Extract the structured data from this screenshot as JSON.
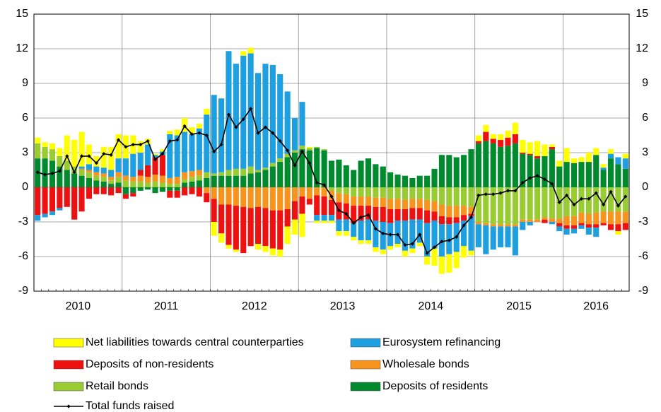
{
  "chart_data": {
    "type": "bar",
    "stacked": true,
    "grid": true,
    "categories": [
      "2010",
      null,
      null,
      null,
      null,
      null,
      null,
      null,
      null,
      null,
      null,
      null,
      "2011",
      null,
      null,
      null,
      null,
      null,
      null,
      null,
      null,
      null,
      null,
      null,
      "2012",
      null,
      null,
      null,
      null,
      null,
      null,
      null,
      null,
      null,
      null,
      null,
      "2013",
      null,
      null,
      null,
      null,
      null,
      null,
      null,
      null,
      null,
      null,
      null,
      "2014",
      null,
      null,
      null,
      null,
      null,
      null,
      null,
      null,
      null,
      null,
      null,
      "2015",
      null,
      null,
      null,
      null,
      null,
      null,
      null,
      null,
      null,
      null,
      null,
      "2016",
      null,
      null,
      null,
      null,
      null,
      null,
      null,
      null
    ],
    "ylim": [
      -9,
      15
    ],
    "yticks": [
      -9,
      -6,
      -3,
      0,
      3,
      6,
      9,
      12,
      15
    ],
    "series": [
      {
        "name": "Net liabilities towards central counterparties",
        "color": "#ffff00",
        "values": [
          0.5,
          0.4,
          0.5,
          0.7,
          2.2,
          2.3,
          3.0,
          1.7,
          0.9,
          1.8,
          2.0,
          2.1,
          2.0,
          1.6,
          1.0,
          0.5,
          0.1,
          0.2,
          0.3,
          0.5,
          1.2,
          0.6,
          0.4,
          0.5,
          -1.2,
          -0.8,
          -0.3,
          -0.2,
          0.4,
          0.5,
          -0.5,
          -0.5,
          -0.6,
          -0.6,
          -1.5,
          -1.3,
          -2.0,
          0.1,
          -0.2,
          -0.2,
          -0.2,
          -0.4,
          -0.4,
          -0.3,
          -0.3,
          -0.3,
          -0.4,
          -0.4,
          -0.3,
          -0.3,
          -0.5,
          -0.4,
          -0.3,
          -0.7,
          -1.5,
          -1.5,
          -1.6,
          -1.4,
          -1.0,
          -0.4,
          0.5,
          0.6,
          0.4,
          0.5,
          0.6,
          1.0,
          1.1,
          1.0,
          1.3,
          1.0,
          0.2,
          0.5,
          1.2,
          0.4,
          0.4,
          0.8,
          0.6,
          0.3,
          0.4,
          -0.3,
          0.4
        ]
      },
      {
        "name": "Eurosystem refinancing",
        "color": "#1e9fe0",
        "values": [
          -0.5,
          -0.3,
          -0.3,
          -0.2,
          0,
          0,
          0.2,
          0.5,
          0.5,
          0.5,
          0.6,
          1.2,
          1.5,
          2.0,
          1.5,
          1.8,
          0.2,
          0.3,
          3.8,
          3.6,
          3.5,
          3.2,
          3.6,
          5.0,
          6.8,
          6.4,
          10.3,
          9.1,
          9.8,
          9.8,
          8.4,
          9.0,
          8.5,
          7.3,
          5.4,
          2.8,
          3.8,
          0,
          -0.5,
          -0.5,
          -0.5,
          -1.0,
          -1.0,
          -1.2,
          -1.7,
          -1.8,
          -2.3,
          -2.4,
          -2.0,
          -2.0,
          -2.6,
          -2.5,
          -2.0,
          -2.9,
          -2.4,
          -2.8,
          -2.6,
          -2.5,
          -2.2,
          -3.0,
          -2.0,
          -2.5,
          -2.0,
          -1.8,
          -1.8,
          -2.5,
          -0.7,
          -0.3,
          0,
          0,
          -0.2,
          -0.4,
          -0.5,
          -0.4,
          -0.3,
          -0.6,
          -0.8,
          0.2,
          0.4,
          0.6,
          0.9
        ]
      },
      {
        "name": "Deposits of non-residents",
        "color": "#ee1111",
        "values": [
          -2.4,
          -2.3,
          -2.1,
          -1.8,
          -1.7,
          -2.8,
          -2.1,
          -1.0,
          -0.6,
          -0.6,
          -0.7,
          -0.5,
          -0.4,
          -0.3,
          0.5,
          1.0,
          1.5,
          1.8,
          -0.6,
          -0.6,
          -0.7,
          -0.6,
          -0.8,
          -0.8,
          -2.0,
          -2.5,
          -3.5,
          -3.8,
          -4.0,
          -3.3,
          -3.2,
          -3.3,
          -3.3,
          -3.4,
          -1.5,
          -1.6,
          -1.5,
          -0.5,
          -1.7,
          -1.6,
          -1.3,
          -1.5,
          -1.4,
          -1.5,
          -1.3,
          -1.2,
          -1.2,
          -1.3,
          -1.2,
          -1.0,
          -1.0,
          -1.0,
          -1.0,
          -1.1,
          -0.8,
          -0.7,
          -0.6,
          -0.5,
          -0.5,
          -0.2,
          0.2,
          0.8,
          0.4,
          0.6,
          0.7,
          0.8,
          0.1,
          0.1,
          0.2,
          -0.3,
          0.2,
          -0.3,
          -0.3,
          -0.3,
          -0.2,
          -0.3,
          -0.3,
          -0.2,
          -0.5,
          -0.6,
          -0.6
        ]
      },
      {
        "name": "Wholesale bonds",
        "color": "#f7941d",
        "values": [
          0,
          0,
          0,
          0,
          0,
          0,
          0.1,
          0.2,
          0.3,
          0.3,
          0.3,
          0.4,
          0.4,
          0.4,
          0.5,
          0.5,
          0.6,
          0.6,
          0.5,
          0.6,
          0.6,
          0.5,
          0.5,
          -0.5,
          -1.0,
          -1.5,
          -1.5,
          -1.6,
          -1.7,
          -1.8,
          -1.7,
          -1.8,
          -2.0,
          -2.0,
          -1.9,
          -1.2,
          -0.8,
          -1.0,
          -0.7,
          -0.8,
          -0.8,
          -0.8,
          -0.8,
          -0.8,
          -0.8,
          -0.8,
          -0.8,
          -0.8,
          -0.9,
          -0.9,
          -0.8,
          -0.8,
          -0.8,
          -0.9,
          -0.9,
          -1.0,
          -1.0,
          -1.0,
          -0.8,
          -0.6,
          -0.2,
          -0.2,
          -0.2,
          -0.2,
          -0.2,
          -0.2,
          -0.2,
          -0.2,
          -0.2,
          -0.2,
          -0.3,
          -0.4,
          -0.8,
          -0.8,
          -0.9,
          -0.9,
          -1.0,
          -1.0,
          -1.1,
          -1.1,
          -1.0
        ]
      },
      {
        "name": "Retail bonds",
        "color": "#99cc33",
        "values": [
          1.3,
          1.0,
          1.0,
          0.9,
          0.8,
          0.6,
          0.5,
          0.5,
          0.4,
          0.4,
          0.3,
          0.5,
          0.6,
          0.5,
          0.5,
          0.4,
          0.5,
          0.4,
          0.3,
          0.3,
          0.3,
          0.4,
          0.4,
          0.5,
          0.2,
          0.3,
          0.5,
          0.6,
          0.6,
          0.6,
          0.2,
          0.2,
          0.3,
          0.3,
          0.3,
          0.2,
          0.3,
          0.2,
          0.1,
          0.1,
          -0.3,
          -0.5,
          -0.6,
          -0.8,
          -0.8,
          -0.8,
          -0.9,
          -0.9,
          -1.0,
          -1.0,
          -1.1,
          -1.0,
          -1.0,
          -1.1,
          -1.2,
          -1.5,
          -1.6,
          -1.6,
          -1.6,
          -1.7,
          -3.0,
          -3.1,
          -3.2,
          -3.2,
          -3.2,
          -3.2,
          -2.8,
          -2.8,
          -2.8,
          -2.6,
          -2.7,
          -2.7,
          -2.5,
          -2.5,
          -2.2,
          -2.3,
          -2.2,
          -2.1,
          -2.1,
          -2.1,
          -2.1
        ]
      },
      {
        "name": "Deposits of residents",
        "color": "#008a2e",
        "values": [
          2.5,
          2.5,
          2.3,
          1.8,
          1.5,
          1.2,
          1.0,
          0.8,
          0.6,
          0.5,
          0.3,
          0.4,
          -0.6,
          -0.5,
          -0.3,
          -0.2,
          -0.5,
          -0.4,
          -0.3,
          -0.3,
          0.4,
          0.5,
          0.6,
          0.8,
          1.0,
          1.0,
          1.0,
          1.0,
          1.0,
          1.2,
          1.3,
          1.5,
          1.8,
          2.2,
          2.6,
          3.0,
          3.3,
          3.2,
          3.4,
          3.2,
          2.3,
          2.4,
          1.9,
          1.5,
          2.3,
          2.5,
          2.0,
          1.8,
          1.3,
          1.1,
          1.0,
          0.8,
          1.0,
          1.0,
          1.6,
          2.8,
          2.8,
          2.6,
          2.8,
          3.3,
          3.8,
          4.0,
          3.8,
          3.5,
          3.6,
          3.8,
          2.9,
          2.8,
          2.5,
          2.7,
          3.3,
          1.8,
          2.2,
          2.1,
          2.2,
          2.2,
          2.8,
          1.5,
          2.5,
          2.0,
          1.6
        ]
      }
    ],
    "line": {
      "name": "Total funds raised",
      "color": "#000000",
      "values": [
        1.3,
        1.1,
        1.2,
        1.4,
        2.7,
        1.3,
        2.7,
        2.7,
        2.1,
        2.9,
        2.8,
        4.1,
        3.5,
        3.7,
        3.7,
        4.0,
        2.4,
        2.9,
        4.0,
        4.1,
        5.3,
        4.6,
        4.7,
        4.5,
        3.1,
        3.7,
        6.3,
        5.2,
        5.9,
        6.8,
        4.7,
        5.2,
        4.7,
        4.0,
        3.2,
        1.9,
        3.1,
        2.1,
        0.4,
        0.2,
        -0.8,
        -2.0,
        -2.3,
        -3.1,
        -2.6,
        -2.4,
        -3.6,
        -4.0,
        -4.1,
        -4.1,
        -5.0,
        -4.9,
        -4.1,
        -5.7,
        -5.2,
        -4.7,
        -4.6,
        -4.3,
        -3.3,
        -2.6,
        -0.7,
        -0.6,
        -0.6,
        -0.5,
        -0.3,
        -0.3,
        0.4,
        0.8,
        1.0,
        0.7,
        0.3,
        -1.3,
        -0.7,
        -1.5,
        -1.0,
        -1.0,
        -0.5,
        -1.5,
        -0.4,
        -1.6,
        -0.8
      ]
    }
  }
}
